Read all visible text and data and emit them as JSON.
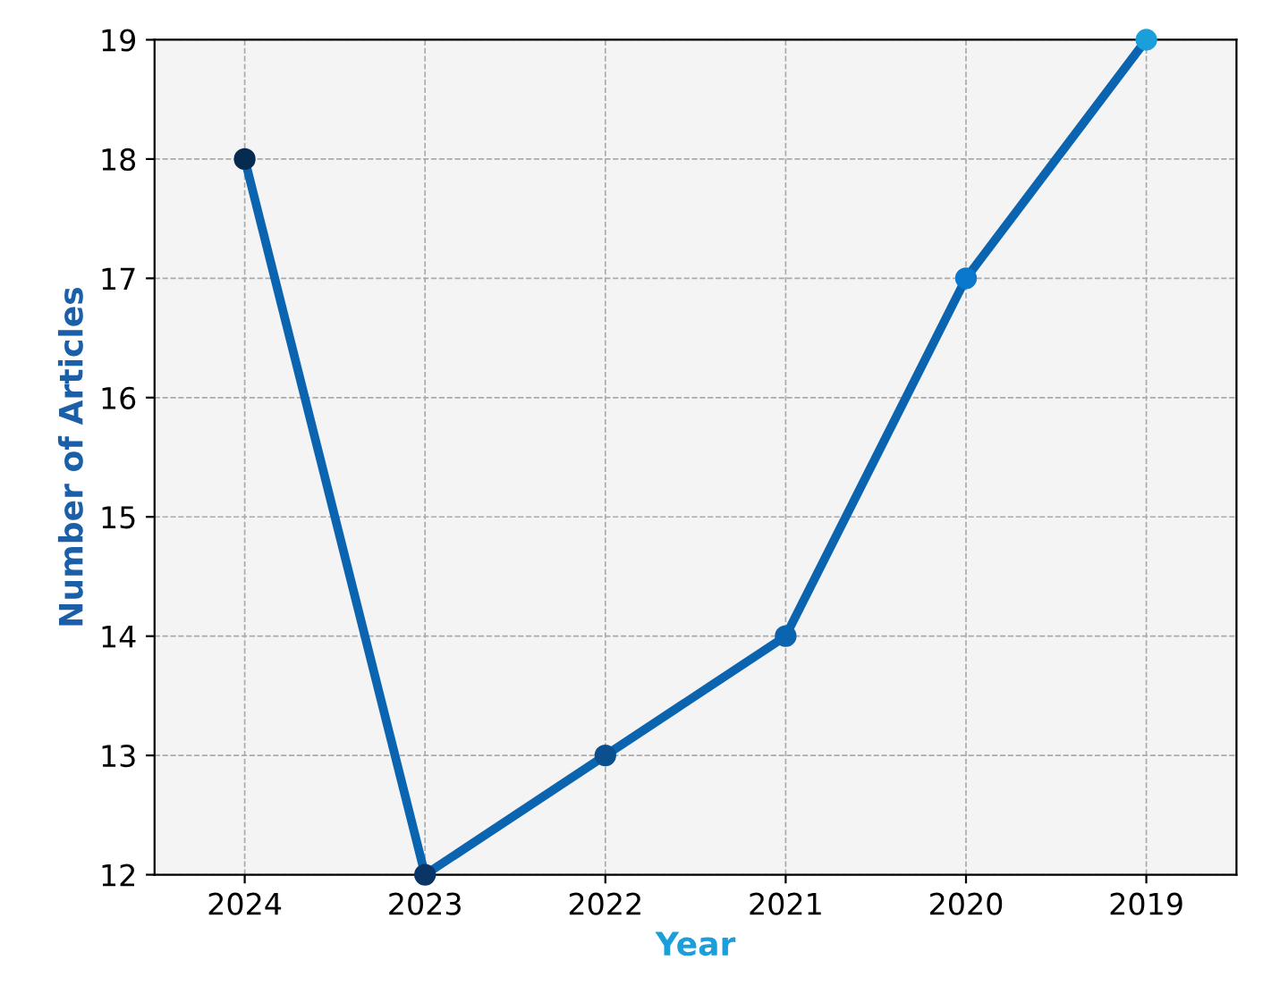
{
  "chart_data": {
    "type": "line",
    "xlabel": "Year",
    "ylabel": "Number of Articles",
    "x": [
      2019,
      2020,
      2021,
      2022,
      2023,
      2024
    ],
    "xlim": [
      2024.5,
      2018.5
    ],
    "xticks": [
      2019,
      2020,
      2021,
      2022,
      2023,
      2024
    ],
    "series": [
      {
        "values": [
          19,
          17,
          14,
          13,
          12,
          18
        ],
        "color": "#0a64b0",
        "colors": [
          "#1a9fdb",
          "#0a78cc",
          "#0a64b0",
          "#0b4f8f",
          "#0b3566",
          "#062a50"
        ]
      }
    ],
    "ylim": [
      12,
      19
    ],
    "yticks": [
      12,
      13,
      14,
      15,
      16,
      17,
      18,
      19
    ],
    "grid": true,
    "marker": "circle",
    "line_style": "solid"
  }
}
